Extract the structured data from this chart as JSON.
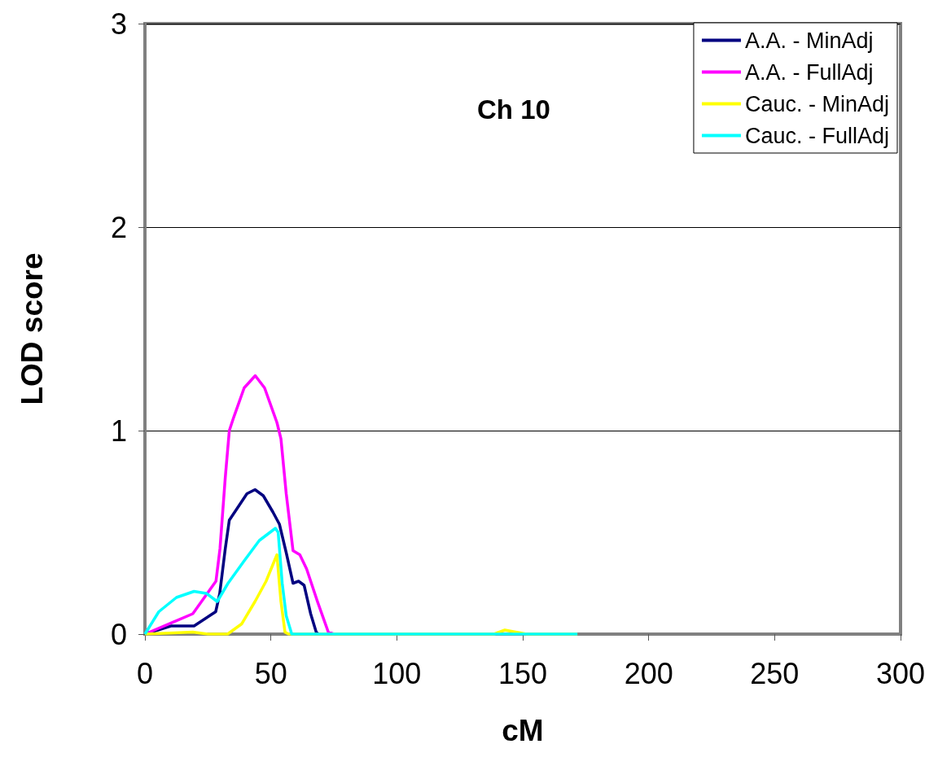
{
  "chart_data": {
    "type": "line",
    "xlabel": "cM",
    "ylabel": "LOD score",
    "annotations": [
      "Ch 10"
    ],
    "xlim": [
      0,
      300
    ],
    "xticks": [
      0,
      50,
      100,
      150,
      200,
      250,
      300
    ],
    "ylim": [
      0,
      3
    ],
    "yticks": [
      0,
      1,
      2,
      3
    ],
    "grid": "y",
    "legend": "top right",
    "marker": "none",
    "line_style": "solid",
    "series": [
      {
        "name": "A.A. - MinAdj",
        "color": "#000080",
        "x": [
          0,
          10.3,
          19.5,
          28.1,
          29.7,
          31.9,
          33.5,
          36.2,
          40.5,
          43.7,
          47,
          50.8,
          53.4,
          56.1,
          58.8,
          61,
          63.2,
          65.8,
          68,
          69
        ],
        "values": [
          0,
          0.04,
          0.04,
          0.11,
          0.2,
          0.42,
          0.56,
          0.61,
          0.69,
          0.71,
          0.68,
          0.6,
          0.54,
          0.4,
          0.25,
          0.26,
          0.24,
          0.1,
          0.01,
          0
        ]
      },
      {
        "name": "A.A. - FullAdj",
        "color": "#ff00ff",
        "x": [
          0,
          19,
          28.2,
          29.8,
          31.9,
          33.5,
          35.1,
          39.4,
          43.8,
          47.5,
          52.4,
          54,
          56.1,
          58.8,
          61.5,
          64.2,
          68.5,
          72.8,
          75
        ],
        "values": [
          0,
          0.1,
          0.26,
          0.42,
          0.77,
          1.0,
          1.06,
          1.21,
          1.27,
          1.21,
          1.04,
          0.96,
          0.69,
          0.41,
          0.39,
          0.32,
          0.16,
          0.01,
          0
        ]
      },
      {
        "name": "Cauc. - MinAdj",
        "color": "#ffff00",
        "x": [
          0,
          19,
          25,
          32.8,
          38.4,
          43.7,
          48.1,
          52.4,
          54,
          55.6,
          57,
          138.6,
          142.9,
          151.5,
          171.7
        ],
        "values": [
          0,
          0.01,
          0,
          0,
          0.05,
          0.16,
          0.26,
          0.39,
          0.16,
          0.01,
          0,
          0,
          0.02,
          0,
          0
        ]
      },
      {
        "name": "Cauc. - FullAdj",
        "color": "#00ffff",
        "x": [
          0,
          5.5,
          12.5,
          19.5,
          24.4,
          28.7,
          33,
          39.4,
          45.4,
          51.8,
          52.9,
          54.5,
          56.1,
          58.3,
          171.7
        ],
        "values": [
          0,
          0.11,
          0.18,
          0.21,
          0.2,
          0.16,
          0.25,
          0.36,
          0.46,
          0.52,
          0.5,
          0.25,
          0.09,
          0,
          0
        ]
      }
    ]
  }
}
